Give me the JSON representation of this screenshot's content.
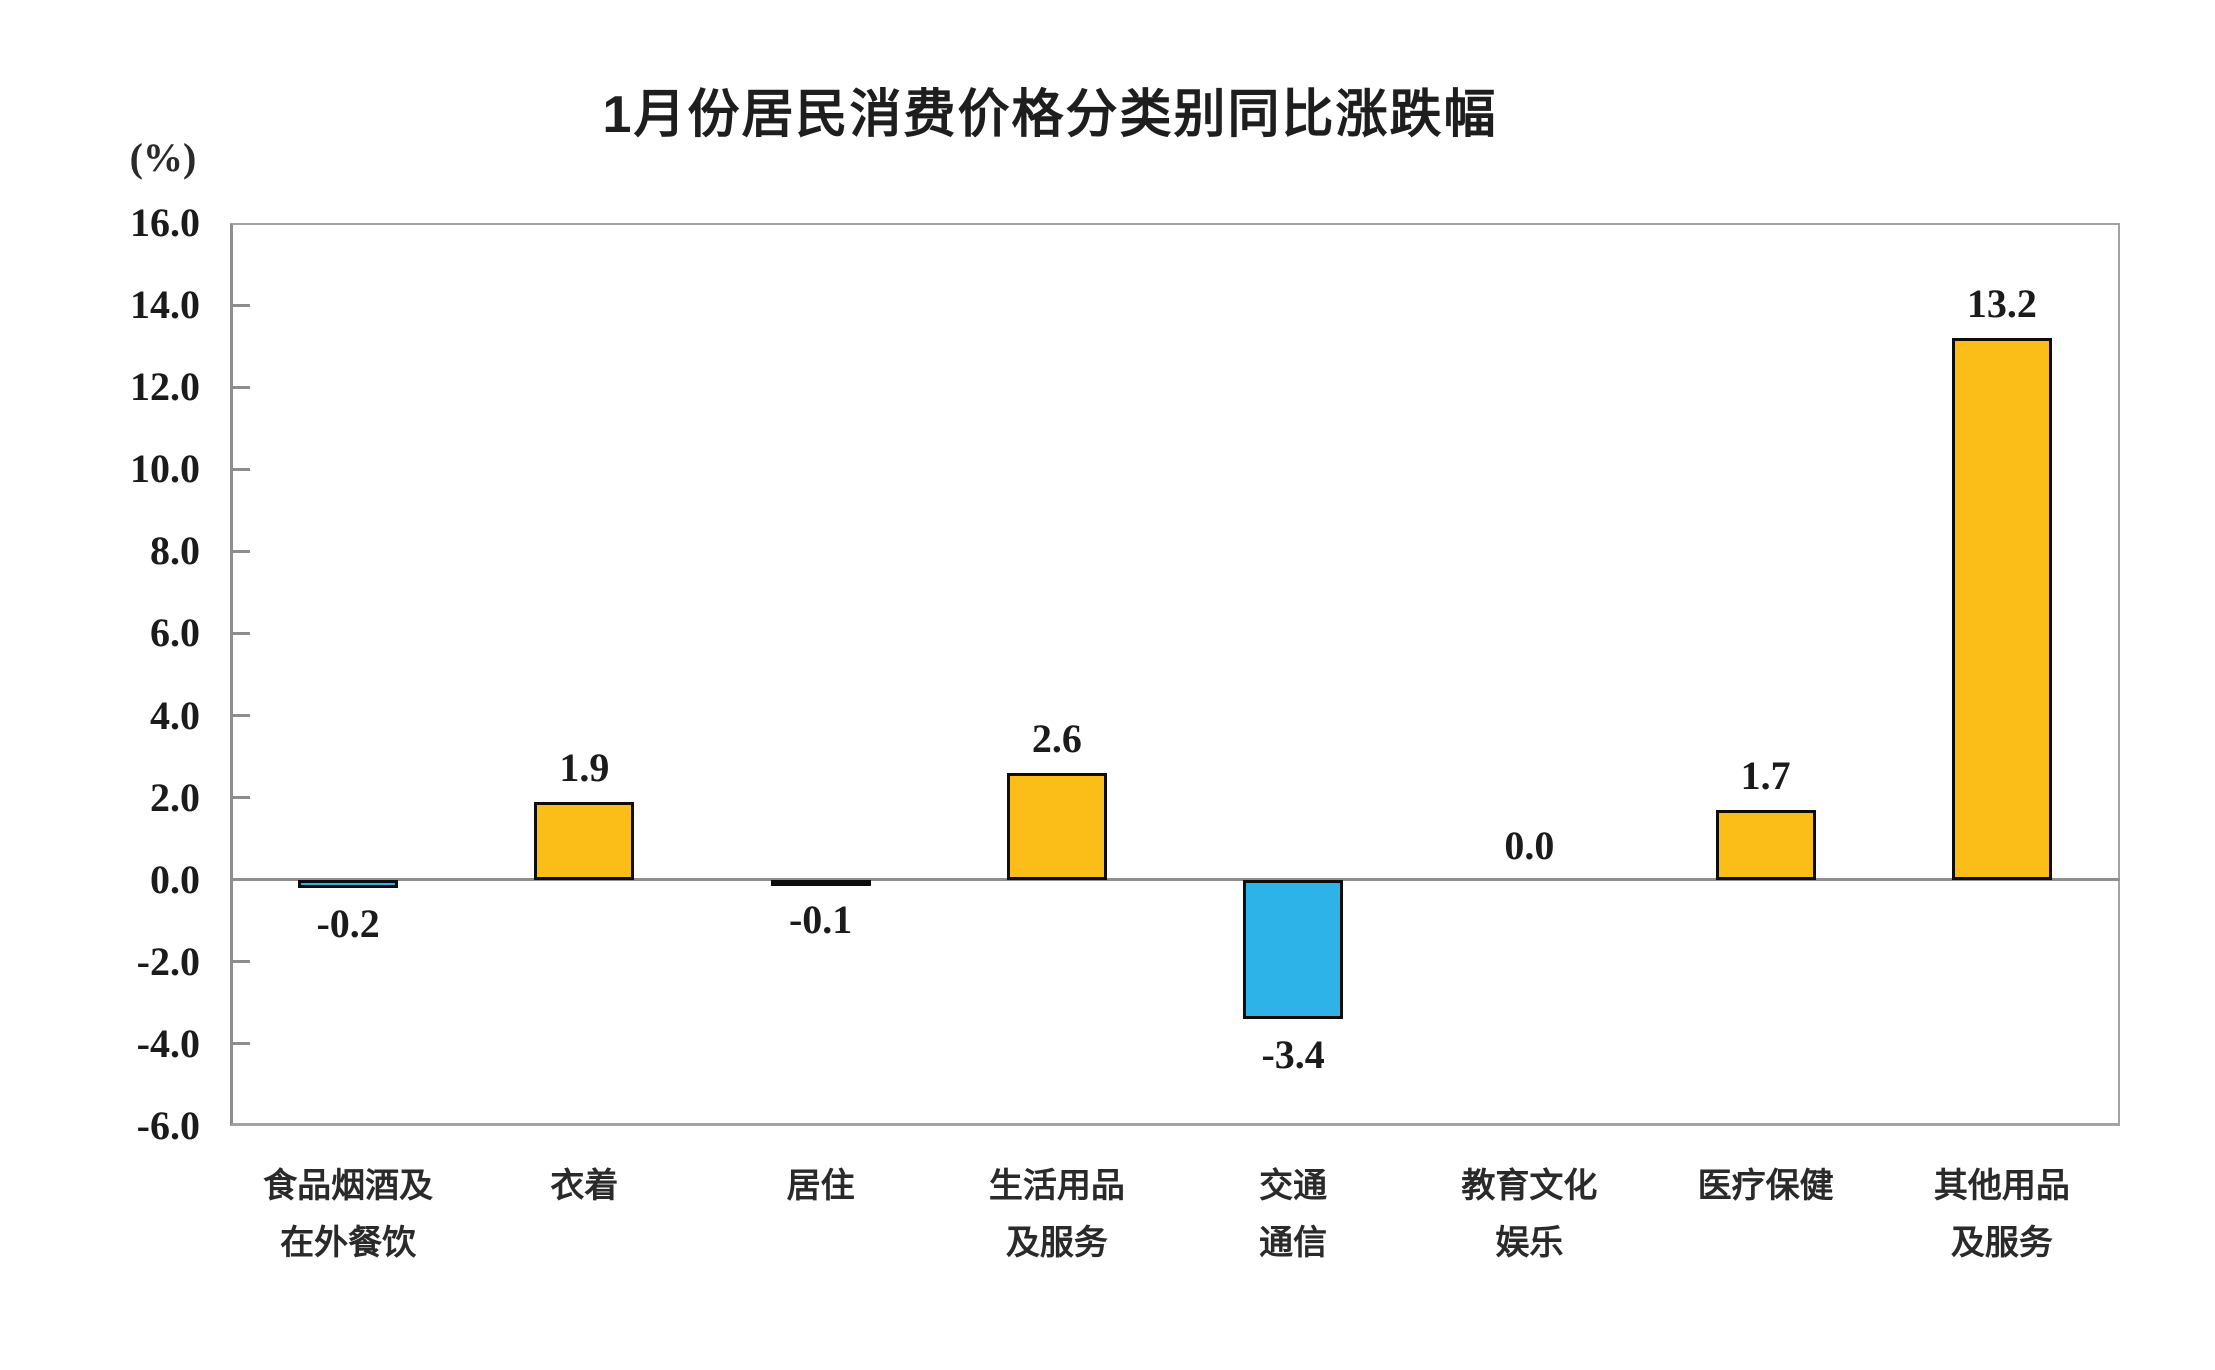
{
  "chart_data": {
    "type": "bar",
    "title": "1月份居民消费价格分类别同比涨跌幅",
    "unit_label": "(%)",
    "categories": [
      "食品烟酒及\n在外餐饮",
      "衣着",
      "居住",
      "生活用品\n及服务",
      "交通\n通信",
      "教育文化\n娱乐",
      "医疗保健",
      "其他用品\n及服务"
    ],
    "values": [
      -0.2,
      1.9,
      -0.1,
      2.6,
      -3.4,
      0.0,
      1.7,
      13.2
    ],
    "value_labels": [
      "-0.2",
      "1.9",
      "-0.1",
      "2.6",
      "-3.4",
      "0.0",
      "1.7",
      "13.2"
    ],
    "ylabel": "",
    "xlabel": "",
    "ylim": [
      -6.0,
      16.0
    ],
    "ytick_step": 2.0,
    "yticks": [
      "16.0",
      "14.0",
      "12.0",
      "10.0",
      "8.0",
      "6.0",
      "4.0",
      "2.0",
      "0.0",
      "-2.0",
      "-4.0",
      "-6.0"
    ],
    "grid": false,
    "legend": "none",
    "colors": {
      "positive_bar": "#FBBE18",
      "negative_bar": "#2EB3E8",
      "bar_border": "#0D0D0D",
      "axis": "#A3A3A3",
      "zero_line": "#8F8F8F",
      "text": "#1B1B1B"
    }
  }
}
